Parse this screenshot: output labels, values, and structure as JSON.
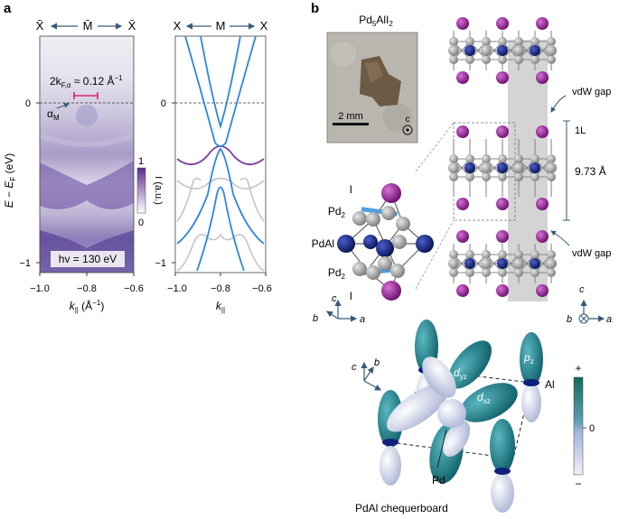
{
  "panel_a": {
    "letter": "a",
    "arpes": {
      "header_left": "X̄",
      "header_mid": "M̄",
      "header_right": "X̄",
      "ylabel_main": "E − E",
      "ylabel_sub": "F",
      "ylabel_unit": " (eV)",
      "annotation_pre": "2k",
      "annotation_sub": "F,α",
      "annotation_post": " ≈ 0.12 Å",
      "annotation_sup": "−1",
      "alpha_label": "α",
      "alpha_sub": "M",
      "photon_energy": "hv = 130 eV",
      "y_ticks": [
        "0",
        "−1"
      ],
      "x_ticks": [
        "−1.0",
        "−0.8",
        "−0.6"
      ],
      "xlabel_main": "k",
      "xlabel_sub": "||",
      "xlabel_unit": " (Å",
      "xlabel_sup": "−1",
      "xlabel_close": ")",
      "colorbar_max": "1",
      "colorbar_min": "0",
      "colorbar_label": "I (a.u.)",
      "colormap": [
        "#ffffff",
        "#5b2c91"
      ]
    },
    "bands": {
      "header_left": "X",
      "header_mid": "M",
      "header_right": "X",
      "y_ticks": [
        "0",
        "−1"
      ],
      "x_ticks": [
        "−1.0",
        "−0.8",
        "−0.6"
      ],
      "xlabel_main": "k",
      "xlabel_sub": "||",
      "colors": {
        "alpha_band": "#2e86de",
        "purple_band": "#7b3fa0",
        "grey_band": "#b8b8b8"
      }
    }
  },
  "panel_b": {
    "letter": "b",
    "crystal_label": "Pd",
    "crystal_sub1": "5",
    "crystal_mid": "AlI",
    "crystal_sub2": "2",
    "scale_bar": "2 mm",
    "c_axis": "c",
    "cluster_labels": {
      "i_top": "I",
      "pd2_top": "Pd",
      "pd2_sub": "2",
      "pdal": "PdAl",
      "pd2_bot": "Pd",
      "i_bot": "I"
    },
    "axes_small": {
      "c": "c",
      "b": "b",
      "a": "a"
    },
    "structure": {
      "vdw_gap_top": "vdW gap",
      "layer": "1L",
      "spacing": "9.73 Å",
      "vdw_gap_bottom": "vdW gap",
      "axis_c": "c",
      "axis_b": "b",
      "axis_a": "a"
    },
    "orbitals": {
      "d_yz": "d",
      "d_yz_sub": "yz",
      "d_xz": "d",
      "d_xz_sub": "xz",
      "p_z": "p",
      "p_z_sub": "z",
      "al": "Al",
      "pd": "Pd",
      "caption": "PdAl chequerboard",
      "colorbar_plus": "+",
      "colorbar_zero": "0",
      "colorbar_minus": "−",
      "axis_c": "c",
      "axis_b": "b",
      "axis_a": "a",
      "colors": {
        "positive": "#1a7f80",
        "negative": "#d0d6ea",
        "al_atom": "#0f1f7a",
        "pd_atom": "#eeeeee"
      }
    },
    "atom_colors": {
      "iodine": "#8b1a8b",
      "aluminium": "#0f1f7a",
      "palladium": "#a8a8a8"
    }
  }
}
